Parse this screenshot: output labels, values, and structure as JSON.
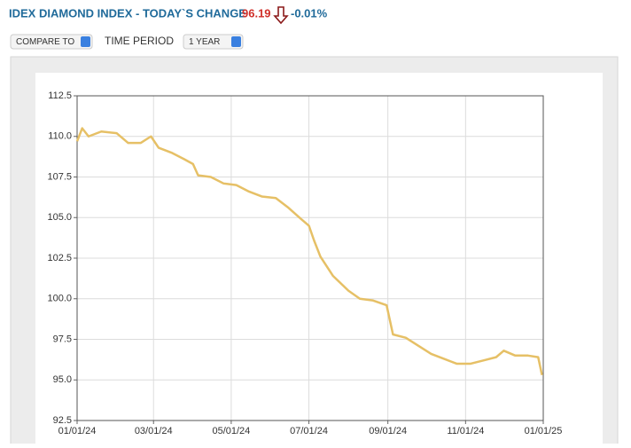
{
  "header": {
    "title": "IDEX DIAMOND INDEX - TODAY`S CHANGE",
    "value": "96.19",
    "change": "-0.01%"
  },
  "controls": {
    "compare_to": "COMPARE TO",
    "time_period_label": "TIME PERIOD",
    "time_period": "1 YEAR"
  },
  "chart_data": {
    "type": "line",
    "color": "#e6c066",
    "grid": true,
    "x": [
      "2024-01-01",
      "2024-01-05",
      "2024-01-10",
      "2024-01-20",
      "2024-02-01",
      "2024-02-10",
      "2024-02-20",
      "2024-02-28",
      "2024-03-05",
      "2024-03-15",
      "2024-03-25",
      "2024-04-01",
      "2024-04-05",
      "2024-04-15",
      "2024-04-25",
      "2024-05-05",
      "2024-05-15",
      "2024-05-25",
      "2024-06-05",
      "2024-06-15",
      "2024-06-25",
      "2024-07-01",
      "2024-07-05",
      "2024-07-10",
      "2024-07-20",
      "2024-08-01",
      "2024-08-10",
      "2024-08-20",
      "2024-08-31",
      "2024-09-05",
      "2024-09-15",
      "2024-09-25",
      "2024-10-05",
      "2024-10-15",
      "2024-10-25",
      "2024-11-05",
      "2024-11-15",
      "2024-11-25",
      "2024-12-01",
      "2024-12-10",
      "2024-12-20",
      "2024-12-28",
      "2024-12-31"
    ],
    "values": [
      109.7,
      110.5,
      110.0,
      110.3,
      110.2,
      109.6,
      109.6,
      110.0,
      109.3,
      109.0,
      108.6,
      108.3,
      107.6,
      107.5,
      107.1,
      107.0,
      106.6,
      106.3,
      106.2,
      105.6,
      104.9,
      104.5,
      103.6,
      102.6,
      101.4,
      100.5,
      100.0,
      99.9,
      99.6,
      97.8,
      97.6,
      97.1,
      96.6,
      96.3,
      96.0,
      96.0,
      96.2,
      96.4,
      96.8,
      96.5,
      96.5,
      96.4,
      95.3
    ],
    "xlim": [
      "2024-01-01",
      "2025-01-01"
    ],
    "xticks": [
      {
        "value": "2024-01-01",
        "label": "01/01/24"
      },
      {
        "value": "2024-03-01",
        "label": "03/01/24"
      },
      {
        "value": "2024-05-01",
        "label": "05/01/24"
      },
      {
        "value": "2024-07-01",
        "label": "07/01/24"
      },
      {
        "value": "2024-09-01",
        "label": "09/01/24"
      },
      {
        "value": "2024-11-01",
        "label": "11/01/24"
      },
      {
        "value": "2025-01-01",
        "label": "01/01/25"
      }
    ],
    "ylim": [
      92.5,
      112.5
    ],
    "yticks": [
      92.5,
      {
        "value": 95,
        "label": "95.0"
      },
      97.5,
      {
        "value": 100,
        "label": "100.0"
      },
      102.5,
      {
        "value": 105,
        "label": "105.0"
      },
      107.5,
      {
        "value": 110,
        "label": "110.0"
      },
      112.5
    ]
  }
}
